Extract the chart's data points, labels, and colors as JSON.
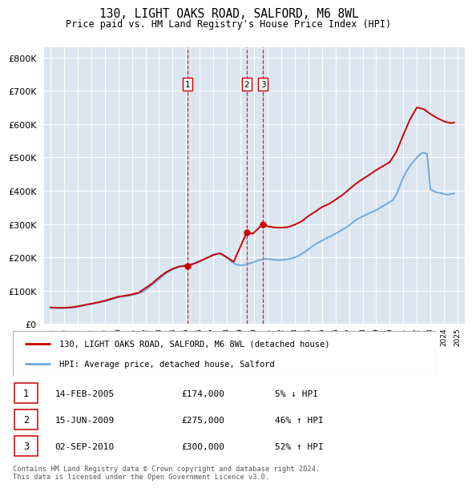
{
  "title": "130, LIGHT OAKS ROAD, SALFORD, M6 8WL",
  "subtitle": "Price paid vs. HM Land Registry's House Price Index (HPI)",
  "footer": "Contains HM Land Registry data © Crown copyright and database right 2024.\nThis data is licensed under the Open Government Licence v3.0.",
  "legend_house": "130, LIGHT OAKS ROAD, SALFORD, M6 8WL (detached house)",
  "legend_hpi": "HPI: Average price, detached house, Salford",
  "transactions": [
    {
      "label": "1",
      "date": "14-FEB-2005",
      "price": 174000,
      "pct": "5% ↓ HPI",
      "year": 2005.12
    },
    {
      "label": "2",
      "date": "15-JUN-2009",
      "price": 275000,
      "pct": "46% ↑ HPI",
      "year": 2009.46
    },
    {
      "label": "3",
      "date": "02-SEP-2010",
      "price": 300000,
      "pct": "52% ↑ HPI",
      "year": 2010.67
    }
  ],
  "hpi_color": "#6fa8dc",
  "house_color": "#cc0000",
  "vline_color": "#cc0000",
  "background_color": "#dce6f1",
  "ylim": [
    0,
    830000
  ],
  "yticks": [
    0,
    100000,
    200000,
    300000,
    400000,
    500000,
    600000,
    700000,
    800000
  ],
  "xlim_start": 1994.5,
  "xlim_end": 2025.5,
  "hpi_data": {
    "years": [
      1995.0,
      1995.25,
      1995.5,
      1995.75,
      1996.0,
      1996.25,
      1996.5,
      1996.75,
      1997.0,
      1997.25,
      1997.5,
      1997.75,
      1998.0,
      1998.25,
      1998.5,
      1998.75,
      1999.0,
      1999.25,
      1999.5,
      1999.75,
      2000.0,
      2000.25,
      2000.5,
      2000.75,
      2001.0,
      2001.25,
      2001.5,
      2001.75,
      2002.0,
      2002.25,
      2002.5,
      2002.75,
      2003.0,
      2003.25,
      2003.5,
      2003.75,
      2004.0,
      2004.25,
      2004.5,
      2004.75,
      2005.0,
      2005.25,
      2005.5,
      2005.75,
      2006.0,
      2006.25,
      2006.5,
      2006.75,
      2007.0,
      2007.25,
      2007.5,
      2007.75,
      2008.0,
      2008.25,
      2008.5,
      2008.75,
      2009.0,
      2009.25,
      2009.5,
      2009.75,
      2010.0,
      2010.25,
      2010.5,
      2010.75,
      2011.0,
      2011.25,
      2011.5,
      2011.75,
      2012.0,
      2012.25,
      2012.5,
      2012.75,
      2013.0,
      2013.25,
      2013.5,
      2013.75,
      2014.0,
      2014.25,
      2014.5,
      2014.75,
      2015.0,
      2015.25,
      2015.5,
      2015.75,
      2016.0,
      2016.25,
      2016.5,
      2016.75,
      2017.0,
      2017.25,
      2017.5,
      2017.75,
      2018.0,
      2018.25,
      2018.5,
      2018.75,
      2019.0,
      2019.25,
      2019.5,
      2019.75,
      2020.0,
      2020.25,
      2020.5,
      2020.75,
      2021.0,
      2021.25,
      2021.5,
      2021.75,
      2022.0,
      2022.25,
      2022.5,
      2022.75,
      2023.0,
      2023.25,
      2023.5,
      2023.75,
      2024.0,
      2024.25,
      2024.5,
      2024.75
    ],
    "values": [
      48000,
      47500,
      47000,
      47500,
      48000,
      48500,
      49000,
      50000,
      52000,
      54000,
      56000,
      58000,
      60000,
      62000,
      64000,
      66000,
      68000,
      71000,
      74000,
      77000,
      80000,
      82000,
      84000,
      85000,
      87000,
      89000,
      92000,
      96000,
      102000,
      110000,
      118000,
      126000,
      134000,
      143000,
      152000,
      158000,
      163000,
      168000,
      172000,
      175000,
      177000,
      179000,
      181000,
      183000,
      187000,
      193000,
      198000,
      202000,
      206000,
      210000,
      212000,
      208000,
      200000,
      190000,
      183000,
      178000,
      176000,
      177000,
      180000,
      183000,
      186000,
      190000,
      193000,
      196000,
      195000,
      194000,
      193000,
      192000,
      192000,
      193000,
      195000,
      197000,
      200000,
      204000,
      210000,
      217000,
      224000,
      232000,
      239000,
      245000,
      250000,
      256000,
      261000,
      266000,
      271000,
      277000,
      283000,
      289000,
      296000,
      304000,
      312000,
      318000,
      323000,
      328000,
      333000,
      337000,
      342000,
      348000,
      354000,
      360000,
      366000,
      373000,
      390000,
      415000,
      440000,
      460000,
      475000,
      488000,
      500000,
      510000,
      515000,
      510000,
      405000,
      398000,
      395000,
      393000,
      390000,
      388000,
      390000,
      392000
    ]
  },
  "house_data": {
    "years": [
      1995.0,
      1995.5,
      1996.0,
      1996.5,
      1997.0,
      1997.5,
      1998.0,
      1998.5,
      1999.0,
      1999.5,
      2000.0,
      2000.5,
      2001.0,
      2001.5,
      2002.0,
      2002.5,
      2003.0,
      2003.5,
      2004.0,
      2004.5,
      2005.12,
      2005.5,
      2006.0,
      2006.5,
      2007.0,
      2007.5,
      2008.0,
      2008.5,
      2009.46,
      2009.9,
      2010.67,
      2011.0,
      2011.5,
      2012.0,
      2012.5,
      2013.0,
      2013.5,
      2014.0,
      2014.5,
      2015.0,
      2015.5,
      2016.0,
      2016.5,
      2017.0,
      2017.5,
      2018.0,
      2018.5,
      2019.0,
      2019.5,
      2020.0,
      2020.5,
      2021.0,
      2021.5,
      2022.0,
      2022.5,
      2023.0,
      2023.5,
      2024.0,
      2024.5,
      2024.75
    ],
    "values": [
      50000,
      49000,
      49000,
      50000,
      53000,
      57000,
      61000,
      65000,
      70000,
      76000,
      82000,
      85000,
      89000,
      94000,
      108000,
      122000,
      140000,
      155000,
      166000,
      173000,
      174000,
      180000,
      189000,
      198000,
      208000,
      212000,
      200000,
      187000,
      275000,
      271000,
      300000,
      293000,
      290000,
      289000,
      291000,
      298000,
      308000,
      324000,
      337000,
      351000,
      360000,
      373000,
      387000,
      404000,
      421000,
      435000,
      448000,
      462000,
      474000,
      486000,
      518000,
      568000,
      615000,
      650000,
      645000,
      630000,
      618000,
      608000,
      603000,
      605000
    ]
  }
}
